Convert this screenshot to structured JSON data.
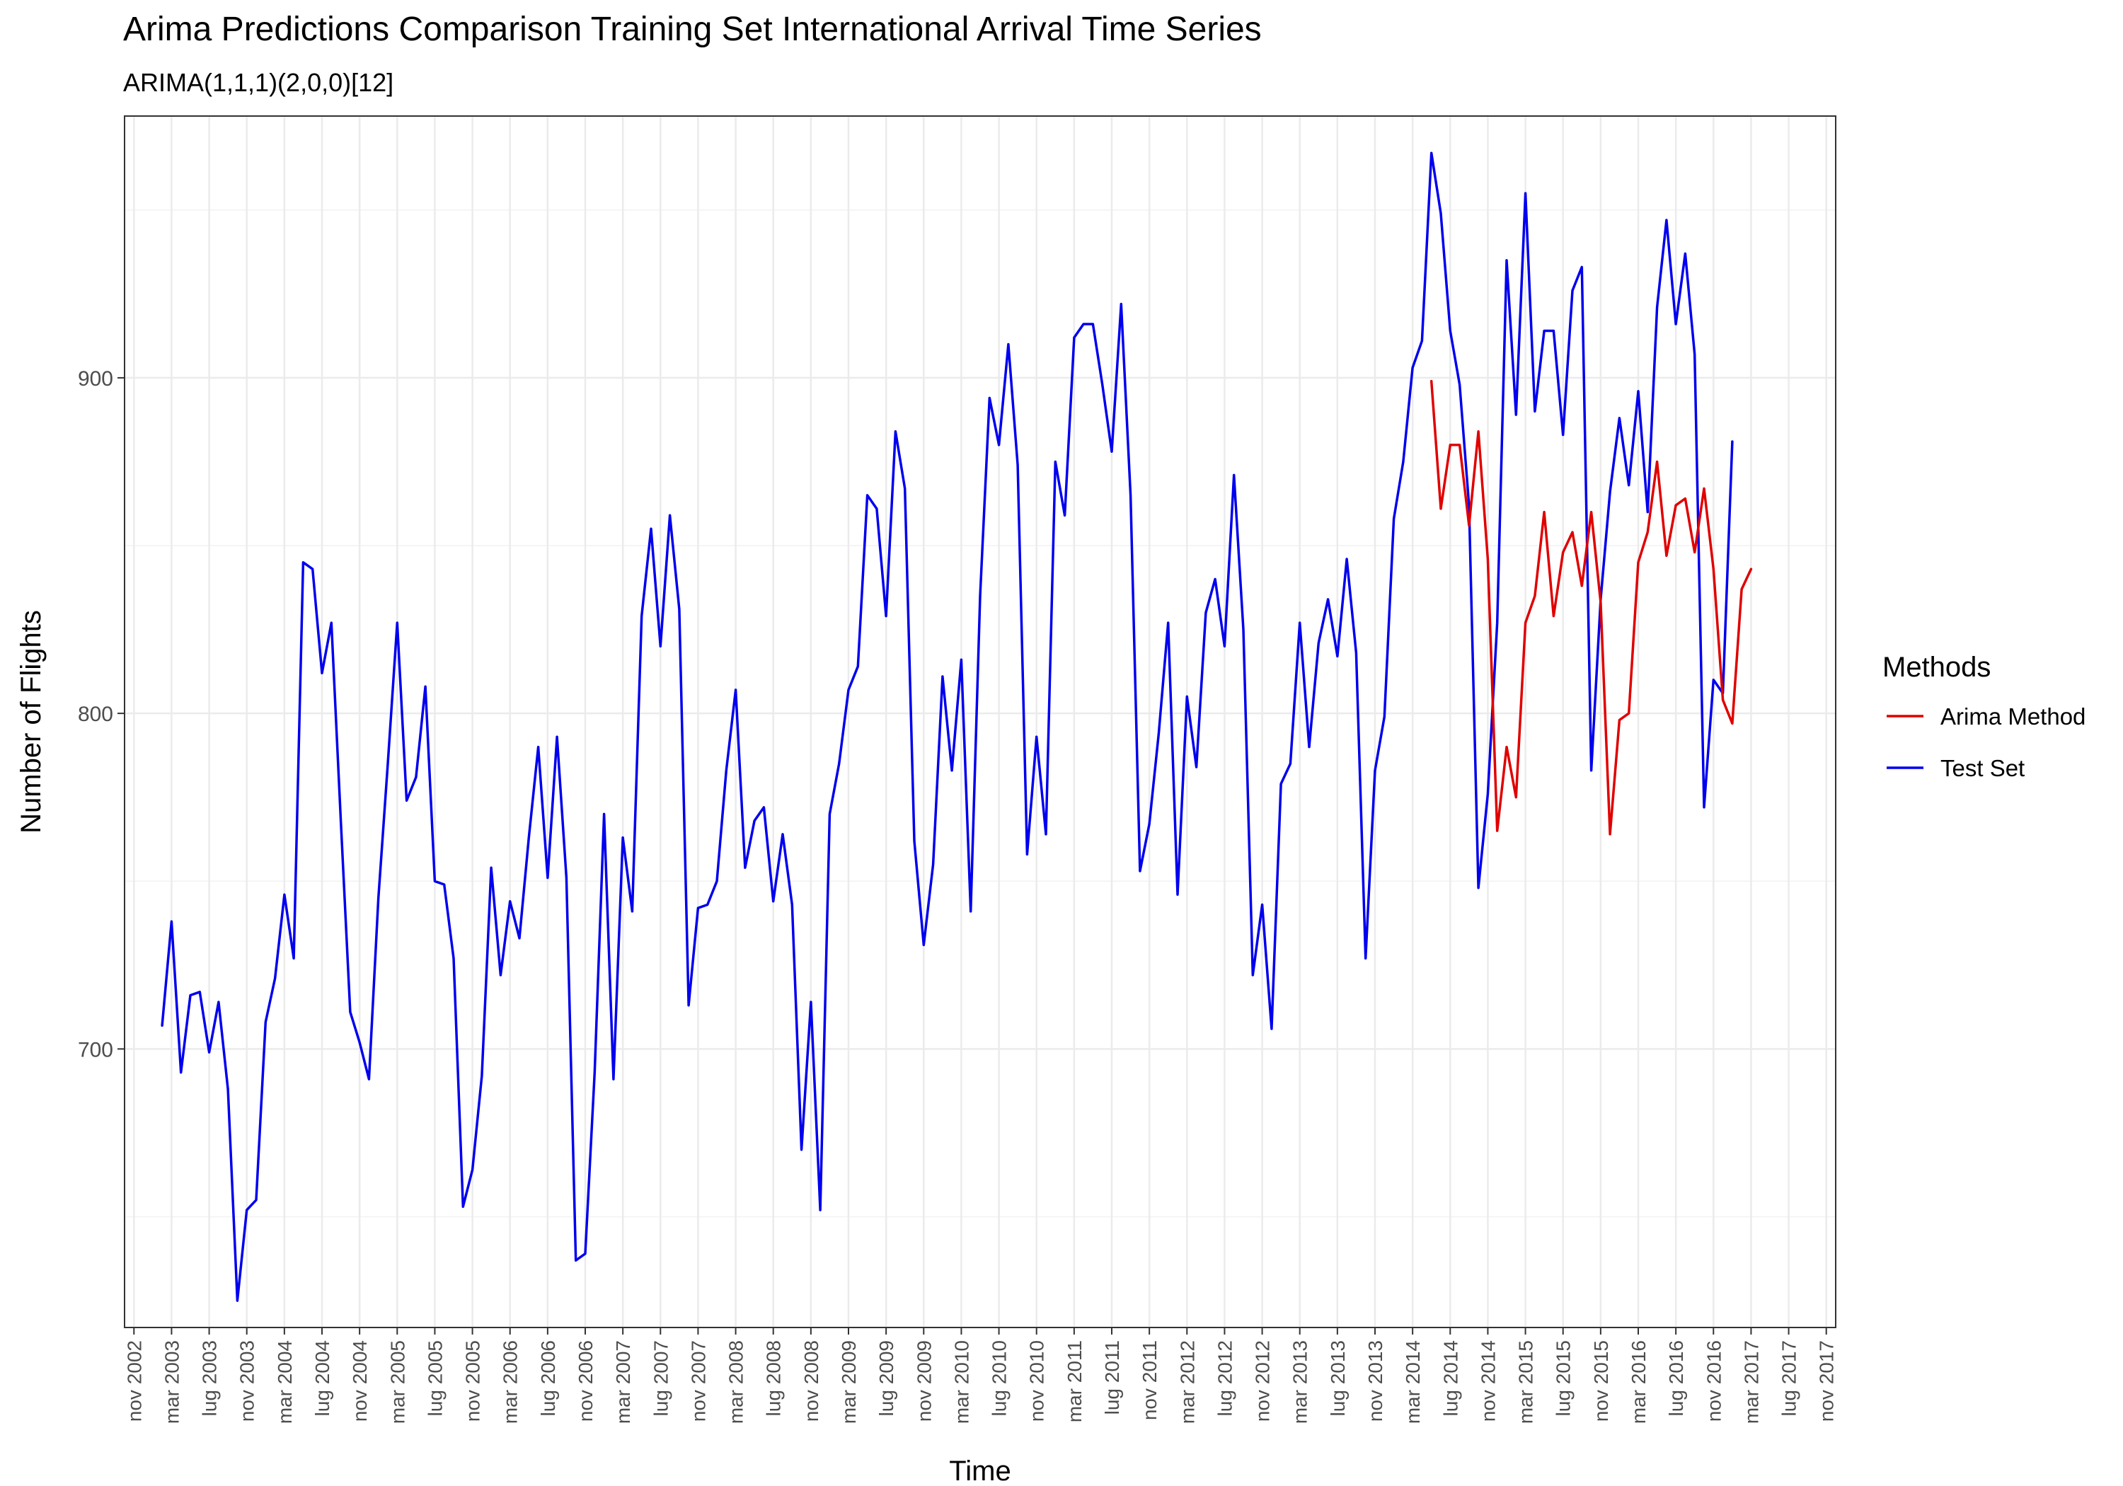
{
  "title": "Arima Predictions Comparison Training Set International Arrival Time Series",
  "subtitle": "ARIMA(1,1,1)(2,0,0)[12]",
  "chart_data": {
    "type": "line",
    "title": "Arima Predictions Comparison Training Set International Arrival Time Series",
    "subtitle": "ARIMA(1,1,1)(2,0,0)[12]",
    "xlabel": "Time",
    "ylabel": "Number of Flights",
    "xlim": [
      "2002-10",
      "2017-12"
    ],
    "ylim": [
      617,
      978
    ],
    "y_ticks": [
      700,
      800,
      900
    ],
    "x_tick_labels": [
      "nov 2002",
      "mar 2003",
      "lug 2003",
      "nov 2003",
      "mar 2004",
      "lug 2004",
      "nov 2004",
      "mar 2005",
      "lug 2005",
      "nov 2005",
      "mar 2006",
      "lug 2006",
      "nov 2006",
      "mar 2007",
      "lug 2007",
      "nov 2007",
      "mar 2008",
      "lug 2008",
      "nov 2008",
      "mar 2009",
      "lug 2009",
      "nov 2009",
      "mar 2010",
      "lug 2010",
      "nov 2010",
      "mar 2011",
      "lug 2011",
      "nov 2011",
      "mar 2012",
      "lug 2012",
      "nov 2012",
      "mar 2013",
      "lug 2013",
      "nov 2013",
      "mar 2014",
      "lug 2014",
      "nov 2014",
      "mar 2015",
      "lug 2015",
      "nov 2015",
      "mar 2016",
      "lug 2016",
      "nov 2016",
      "mar 2017",
      "lug 2017",
      "nov 2017"
    ],
    "grid": true,
    "legend": {
      "title": "Methods",
      "position": "right"
    },
    "series": [
      {
        "name": "Test Set",
        "color": "#0000ee",
        "start": "2003-02",
        "values": [
          707,
          738,
          693,
          716,
          717,
          699,
          714,
          688,
          625,
          652,
          655,
          708,
          721,
          746,
          727,
          845,
          843,
          812,
          827,
          768,
          711,
          702,
          691,
          745,
          785,
          827,
          774,
          781,
          808,
          750,
          749,
          727,
          653,
          664,
          692,
          754,
          722,
          744,
          733,
          763,
          790,
          751,
          793,
          751,
          637,
          639,
          693,
          770,
          691,
          763,
          741,
          829,
          855,
          820,
          859,
          831,
          713,
          742,
          743,
          750,
          783,
          807,
          754,
          768,
          772,
          744,
          764,
          743,
          670,
          714,
          652,
          770,
          785,
          807,
          814,
          865,
          861,
          829,
          884,
          867,
          762,
          731,
          755,
          811,
          783,
          816,
          741,
          835,
          894,
          880,
          910,
          874,
          758,
          793,
          764,
          875,
          859,
          912,
          916,
          916,
          898,
          878,
          922,
          865,
          753,
          767,
          794,
          827,
          746,
          805,
          784,
          830,
          840,
          820,
          871,
          825,
          722,
          743,
          706,
          779,
          785,
          827,
          790,
          821,
          834,
          817,
          846,
          818,
          727,
          783,
          799,
          858,
          875,
          903,
          911,
          967,
          949,
          914,
          898,
          862,
          748,
          776,
          827,
          935,
          889,
          955,
          890,
          914,
          914,
          883,
          926,
          933,
          783,
          834,
          866,
          888,
          868,
          896,
          860,
          921,
          947,
          916,
          937,
          907,
          772,
          810,
          806,
          881
        ],
        "values_note": "monthly observations"
      },
      {
        "name": "Arima Method",
        "color": "#e00000",
        "start": "2014-05",
        "values": [
          899,
          861,
          880,
          880,
          856,
          884,
          846,
          765,
          790,
          775,
          827,
          835,
          860,
          829,
          848,
          854,
          838,
          860,
          833,
          764,
          798,
          800,
          845,
          854,
          875,
          847,
          862,
          864,
          848,
          867,
          843,
          804,
          797,
          837,
          843
        ]
      }
    ]
  }
}
